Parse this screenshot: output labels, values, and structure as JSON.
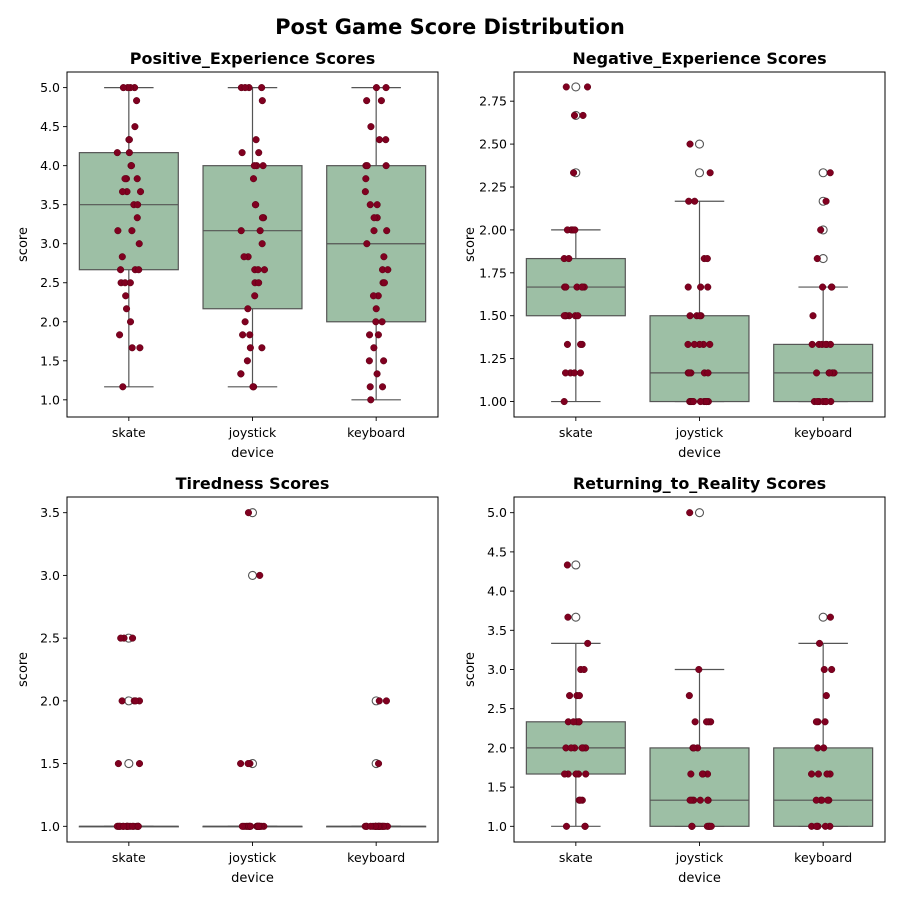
{
  "title": "Post Game Score Distribution",
  "chart_data": [
    {
      "type": "box",
      "title": "Positive_Experience Scores",
      "xlabel": "device",
      "ylabel": "score",
      "categories": [
        "skate",
        "joystick",
        "keyboard"
      ],
      "ylim": [
        0.78,
        5.2
      ],
      "yticks": [
        1.0,
        1.5,
        2.0,
        2.5,
        3.0,
        3.5,
        4.0,
        4.5,
        5.0
      ],
      "ytick_labels": [
        "1.0",
        "1.5",
        "2.0",
        "2.5",
        "3.0",
        "3.5",
        "4.0",
        "4.5",
        "5.0"
      ],
      "boxes": [
        {
          "q1": 2.667,
          "median": 3.5,
          "q3": 4.167,
          "whisker_low": 1.167,
          "whisker_high": 5.0,
          "outliers": []
        },
        {
          "q1": 2.167,
          "median": 3.167,
          "q3": 4.0,
          "whisker_low": 1.167,
          "whisker_high": 5.0,
          "outliers": []
        },
        {
          "q1": 2.0,
          "median": 3.0,
          "q3": 4.0,
          "whisker_low": 1.0,
          "whisker_high": 5.0,
          "outliers": []
        }
      ],
      "points": [
        [
          5.0,
          5.0,
          5.0,
          5.0,
          4.833,
          4.5,
          4.333,
          4.333,
          4.167,
          4.167,
          4.0,
          4.0,
          3.833,
          3.833,
          3.833,
          3.667,
          3.667,
          3.667,
          3.5,
          3.5,
          3.333,
          3.167,
          3.167,
          3.0,
          2.833,
          2.667,
          2.667,
          2.667,
          2.5,
          2.5,
          2.5,
          2.333,
          2.167,
          2.0,
          1.833,
          1.667,
          1.667,
          1.167
        ],
        [
          5.0,
          5.0,
          5.0,
          5.0,
          4.833,
          4.333,
          4.167,
          4.167,
          4.0,
          4.0,
          4.0,
          3.833,
          3.5,
          3.5,
          3.333,
          3.333,
          3.167,
          3.167,
          3.0,
          2.833,
          2.833,
          2.667,
          2.667,
          2.667,
          2.5,
          2.5,
          2.333,
          2.167,
          2.0,
          1.833,
          1.833,
          1.667,
          1.667,
          1.5,
          1.333,
          1.333,
          1.167,
          1.167
        ],
        [
          5.0,
          5.0,
          4.833,
          4.833,
          4.5,
          4.333,
          4.333,
          4.0,
          4.0,
          4.0,
          3.833,
          3.667,
          3.5,
          3.5,
          3.333,
          3.333,
          3.167,
          3.167,
          3.0,
          2.833,
          2.667,
          2.667,
          2.5,
          2.5,
          2.333,
          2.333,
          2.167,
          2.0,
          2.0,
          1.833,
          1.833,
          1.667,
          1.5,
          1.5,
          1.333,
          1.167,
          1.167,
          1.0
        ]
      ]
    },
    {
      "type": "box",
      "title": "Negative_Experience Scores",
      "xlabel": "device",
      "ylabel": "score",
      "categories": [
        "skate",
        "joystick",
        "keyboard"
      ],
      "ylim": [
        0.91,
        2.92
      ],
      "yticks": [
        1.0,
        1.25,
        1.5,
        1.75,
        2.0,
        2.25,
        2.5,
        2.75
      ],
      "ytick_labels": [
        "1.00",
        "1.25",
        "1.50",
        "1.75",
        "2.00",
        "2.25",
        "2.50",
        "2.75"
      ],
      "boxes": [
        {
          "q1": 1.5,
          "median": 1.667,
          "q3": 1.833,
          "whisker_low": 1.0,
          "whisker_high": 2.0,
          "outliers": [
            2.833,
            2.667,
            2.333
          ]
        },
        {
          "q1": 1.0,
          "median": 1.167,
          "q3": 1.5,
          "whisker_low": 1.0,
          "whisker_high": 2.167,
          "outliers": [
            2.5,
            2.333
          ]
        },
        {
          "q1": 1.0,
          "median": 1.167,
          "q3": 1.333,
          "whisker_low": 1.0,
          "whisker_high": 1.667,
          "outliers": [
            2.333,
            2.167,
            2.0,
            1.833
          ]
        }
      ],
      "points": [
        [
          2.833,
          2.833,
          2.667,
          2.667,
          2.333,
          2.0,
          2.0,
          2.0,
          2.0,
          1.833,
          1.833,
          1.667,
          1.667,
          1.667,
          1.667,
          1.667,
          1.667,
          1.5,
          1.5,
          1.5,
          1.5,
          1.5,
          1.5,
          1.333,
          1.333,
          1.333,
          1.167,
          1.167,
          1.167,
          1.167,
          1.0
        ],
        [
          2.5,
          2.333,
          2.167,
          2.167,
          1.833,
          1.833,
          1.667,
          1.667,
          1.667,
          1.5,
          1.5,
          1.5,
          1.5,
          1.333,
          1.333,
          1.333,
          1.333,
          1.333,
          1.167,
          1.167,
          1.167,
          1.167,
          1.167,
          1.0,
          1.0,
          1.0,
          1.0,
          1.0,
          1.0,
          1.0,
          1.0,
          1.0
        ],
        [
          2.333,
          2.167,
          2.0,
          1.833,
          1.667,
          1.667,
          1.667,
          1.5,
          1.333,
          1.333,
          1.333,
          1.333,
          1.333,
          1.333,
          1.167,
          1.167,
          1.167,
          1.167,
          1.167,
          1.0,
          1.0,
          1.0,
          1.0,
          1.0,
          1.0,
          1.0,
          1.0
        ]
      ]
    },
    {
      "type": "box",
      "title": "Tiredness Scores",
      "xlabel": "device",
      "ylabel": "score",
      "categories": [
        "skate",
        "joystick",
        "keyboard"
      ],
      "ylim": [
        0.875,
        3.625
      ],
      "yticks": [
        1.0,
        1.5,
        2.0,
        2.5,
        3.0,
        3.5
      ],
      "ytick_labels": [
        "1.0",
        "1.5",
        "2.0",
        "2.5",
        "3.0",
        "3.5"
      ],
      "boxes": [
        {
          "q1": 1.0,
          "median": 1.0,
          "q3": 1.0,
          "whisker_low": 1.0,
          "whisker_high": 1.0,
          "outliers": [
            2.5,
            2.0,
            1.5
          ]
        },
        {
          "q1": 1.0,
          "median": 1.0,
          "q3": 1.0,
          "whisker_low": 1.0,
          "whisker_high": 1.0,
          "outliers": [
            3.5,
            3.0,
            1.5
          ]
        },
        {
          "q1": 1.0,
          "median": 1.0,
          "q3": 1.0,
          "whisker_low": 1.0,
          "whisker_high": 1.0,
          "outliers": [
            2.0,
            1.5
          ]
        }
      ],
      "points": [
        [
          2.5,
          2.5,
          2.5,
          2.0,
          2.0,
          2.0,
          2.0,
          1.5,
          1.5,
          1.0,
          1.0,
          1.0,
          1.0,
          1.0,
          1.0,
          1.0,
          1.0,
          1.0,
          1.0,
          1.0,
          1.0,
          1.0,
          1.0,
          1.0,
          1.0,
          1.0
        ],
        [
          3.5,
          3.0,
          1.5,
          1.5,
          1.5,
          1.0,
          1.0,
          1.0,
          1.0,
          1.0,
          1.0,
          1.0,
          1.0,
          1.0,
          1.0,
          1.0,
          1.0,
          1.0,
          1.0,
          1.0,
          1.0,
          1.0,
          1.0,
          1.0
        ],
        [
          2.0,
          2.0,
          1.5,
          1.0,
          1.0,
          1.0,
          1.0,
          1.0,
          1.0,
          1.0,
          1.0,
          1.0,
          1.0,
          1.0,
          1.0,
          1.0,
          1.0,
          1.0,
          1.0,
          1.0,
          1.0,
          1.0,
          1.0
        ]
      ]
    },
    {
      "type": "box",
      "title": "Returning_to_Reality Scores",
      "xlabel": "device",
      "ylabel": "score",
      "categories": [
        "skate",
        "joystick",
        "keyboard"
      ],
      "ylim": [
        0.8,
        5.2
      ],
      "yticks": [
        1.0,
        1.5,
        2.0,
        2.5,
        3.0,
        3.5,
        4.0,
        4.5,
        5.0
      ],
      "ytick_labels": [
        "1.0",
        "1.5",
        "2.0",
        "2.5",
        "3.0",
        "3.5",
        "4.0",
        "4.5",
        "5.0"
      ],
      "boxes": [
        {
          "q1": 1.667,
          "median": 2.0,
          "q3": 2.333,
          "whisker_low": 1.0,
          "whisker_high": 3.333,
          "outliers": [
            4.333,
            3.667
          ]
        },
        {
          "q1": 1.0,
          "median": 1.333,
          "q3": 2.0,
          "whisker_low": 1.0,
          "whisker_high": 3.0,
          "outliers": [
            5.0
          ]
        },
        {
          "q1": 1.0,
          "median": 1.333,
          "q3": 2.0,
          "whisker_low": 1.0,
          "whisker_high": 3.333,
          "outliers": [
            3.667
          ]
        }
      ],
      "points": [
        [
          4.333,
          3.667,
          3.333,
          3.0,
          3.0,
          2.667,
          2.667,
          2.667,
          2.333,
          2.333,
          2.333,
          2.333,
          2.333,
          2.0,
          2.0,
          2.0,
          2.0,
          2.0,
          2.0,
          1.667,
          1.667,
          1.667,
          1.667,
          1.667,
          1.333,
          1.333,
          1.333,
          1.0,
          1.0,
          1.0
        ],
        [
          5.0,
          3.0,
          2.667,
          2.333,
          2.333,
          2.333,
          2.333,
          2.0,
          2.0,
          2.0,
          1.667,
          1.667,
          1.667,
          1.667,
          1.333,
          1.333,
          1.333,
          1.333,
          1.333,
          1.333,
          1.0,
          1.0,
          1.0,
          1.0,
          1.0,
          1.0,
          1.0
        ],
        [
          3.667,
          3.333,
          3.0,
          3.0,
          2.667,
          2.333,
          2.333,
          2.333,
          2.0,
          2.0,
          1.667,
          1.667,
          1.667,
          1.667,
          1.333,
          1.333,
          1.333,
          1.333,
          1.333,
          1.0,
          1.0,
          1.0,
          1.0,
          1.0,
          1.0
        ]
      ]
    }
  ],
  "colors": {
    "box_fill": "#9dbfa5",
    "box_edge": "#555555",
    "point": "#800020",
    "point_edge": "#5a0014",
    "outlier_edge": "#555555"
  }
}
